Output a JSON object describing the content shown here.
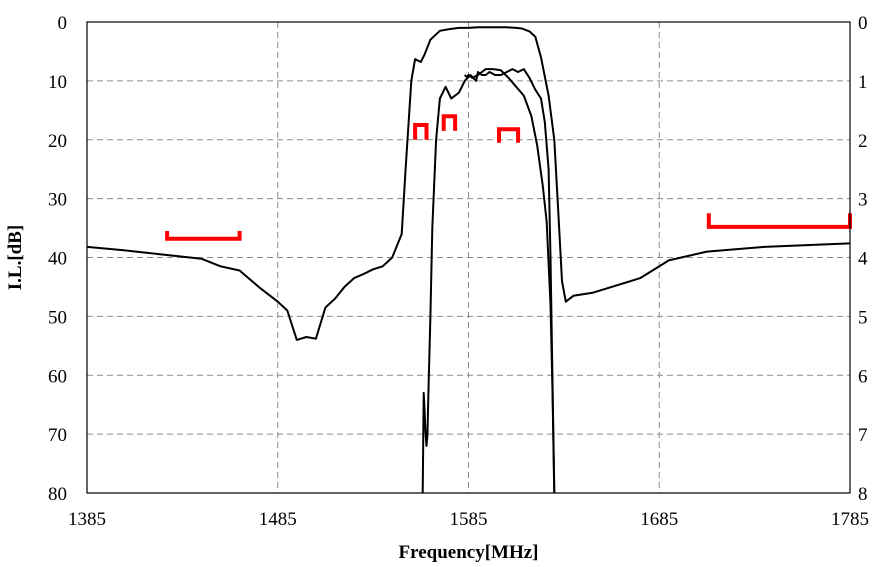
{
  "chart_data": {
    "type": "line",
    "title": "",
    "xlabel": "Frequency[MHz]",
    "ylabel": "I.L.[dB]",
    "xlim": [
      1385,
      1785
    ],
    "ylim": [
      0,
      80
    ],
    "y_reversed": true,
    "y2lim": [
      0,
      8
    ],
    "y2_reversed": true,
    "grid": true,
    "legend": "none",
    "x_ticks": [
      "1385",
      "1485",
      "1585",
      "1685",
      "1785"
    ],
    "y_ticks": [
      "0",
      "10",
      "20",
      "30",
      "40",
      "50",
      "60",
      "70",
      "80"
    ],
    "y2_ticks": [
      "0",
      "1",
      "2",
      "3",
      "4",
      "5",
      "6",
      "7",
      "8"
    ],
    "line_color": "#000000",
    "spec_color": "#ff0000",
    "series": [
      {
        "axis": "left",
        "color": "#000000",
        "x": [
          1385,
          1405,
          1425,
          1445,
          1455,
          1465,
          1475,
          1485,
          1490,
          1495,
          1500,
          1505,
          1510,
          1515,
          1520,
          1525,
          1530,
          1535,
          1540,
          1545,
          1550,
          1552,
          1555,
          1557,
          1560,
          1562,
          1565,
          1570,
          1575,
          1580,
          1585,
          1590,
          1595,
          1600,
          1605,
          1610,
          1613,
          1617,
          1620,
          1623,
          1627,
          1630,
          1632,
          1634,
          1636,
          1640,
          1650,
          1660,
          1675,
          1690,
          1710,
          1740,
          1785
        ],
        "y": [
          38.2,
          38.8,
          39.5,
          40.2,
          41.5,
          42.2,
          45.0,
          47.5,
          49.0,
          54.0,
          53.5,
          53.8,
          48.5,
          47.0,
          45.0,
          43.5,
          42.8,
          42.0,
          41.5,
          40.0,
          36.0,
          25.0,
          10.0,
          6.3,
          6.8,
          5.5,
          3.0,
          1.5,
          1.2,
          1.0,
          1.0,
          0.9,
          0.9,
          0.9,
          0.9,
          1.0,
          1.1,
          1.6,
          2.5,
          6.0,
          12.5,
          20.0,
          32.0,
          44.0,
          47.5,
          46.5,
          46.0,
          45.0,
          43.5,
          40.5,
          39.0,
          38.2,
          37.6
        ]
      },
      {
        "axis": "right",
        "color": "#000000",
        "x": [
          1561,
          1561.5,
          1562,
          1562.5,
          1563,
          1563.5,
          1564,
          1565,
          1566,
          1568,
          1570,
          1573,
          1576,
          1580,
          1583,
          1586,
          1589,
          1590,
          1592,
          1594,
          1596,
          1599,
          1602,
          1605,
          1608,
          1611,
          1614,
          1617,
          1620,
          1623,
          1625,
          1627,
          1628,
          1629,
          1630
        ],
        "y": [
          8.0,
          6.3,
          6.6,
          7.0,
          7.2,
          7.0,
          6.3,
          5.0,
          3.5,
          2.0,
          1.3,
          1.1,
          1.3,
          1.2,
          1.0,
          0.9,
          1.0,
          0.85,
          0.9,
          0.9,
          0.85,
          0.9,
          0.9,
          0.85,
          0.8,
          0.85,
          0.8,
          0.95,
          1.15,
          1.3,
          1.7,
          2.5,
          4.0,
          6.0,
          8.0
        ]
      },
      {
        "axis": "left",
        "color": "#000000",
        "x": [
          1583,
          1584,
          1585,
          1587,
          1590,
          1594,
          1598,
          1602,
          1606,
          1610,
          1614,
          1618,
          1621,
          1624,
          1626,
          1628,
          1629,
          1630
        ],
        "y": [
          9.0,
          9.3,
          9.0,
          9.5,
          9.0,
          8.0,
          8.0,
          8.2,
          9.5,
          11.0,
          12.5,
          16.0,
          21.0,
          28.0,
          34.0,
          48.0,
          62.0,
          80.0
        ]
      }
    ],
    "spec_marks": [
      {
        "x": [
          1427,
          1427,
          1465,
          1465
        ],
        "y": [
          35.5,
          36.8,
          36.8,
          35.5
        ]
      },
      {
        "x": [
          1557,
          1557,
          1563,
          1563
        ],
        "y": [
          20.0,
          17.5,
          17.5,
          20.0
        ]
      },
      {
        "x": [
          1572,
          1572,
          1578,
          1578
        ],
        "y": [
          18.5,
          16.0,
          16.0,
          18.5
        ]
      },
      {
        "x": [
          1601,
          1601,
          1611,
          1611
        ],
        "y": [
          20.5,
          18.2,
          18.2,
          20.5
        ]
      },
      {
        "x": [
          1711,
          1711,
          1785,
          1785
        ],
        "y": [
          32.5,
          34.8,
          34.8,
          32.5
        ]
      }
    ]
  }
}
